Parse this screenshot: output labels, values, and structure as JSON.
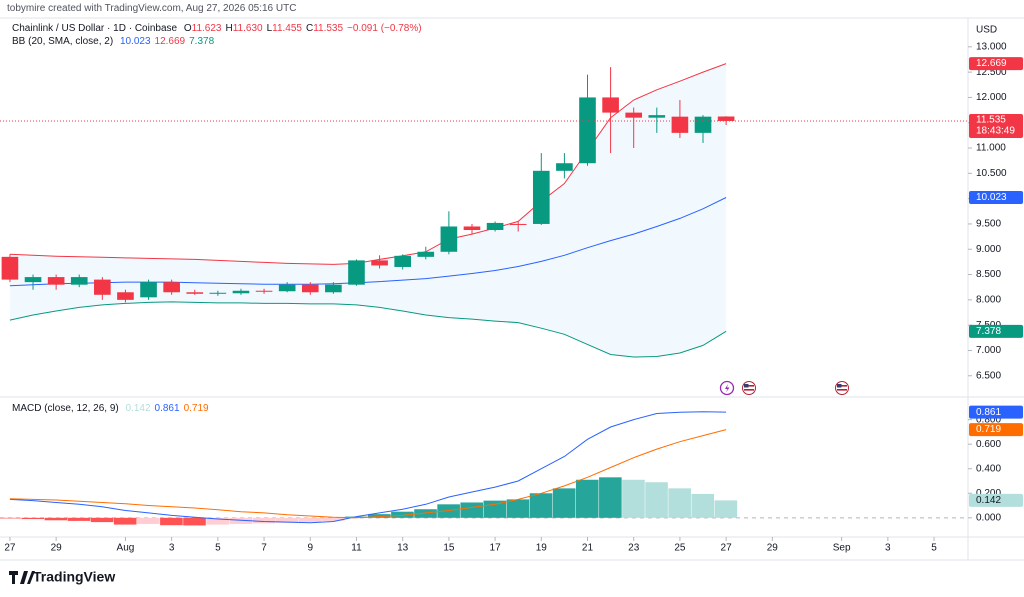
{
  "credit": "tobymire created with TradingView.com, Aug 27, 2026 05:16 UTC",
  "footer": "TradingView",
  "chart_data": [
    {
      "type": "candlestick",
      "title": "Chainlink / US Dollar · 1D · Coinbase",
      "ohlc": [
        {
          "key": "O",
          "text": "11.623"
        },
        {
          "key": "H",
          "text": "11.630"
        },
        {
          "key": "L",
          "text": "11.455"
        },
        {
          "key": "C",
          "text": "11.535"
        }
      ],
      "change": "−0.091 (−0.78%)",
      "currency": "USD",
      "countdown": "18:43:49",
      "indicator": "BB (20, SMA, close, 2)",
      "up_color": "#089981",
      "down_color": "#f23645",
      "x": [
        0,
        1,
        2,
        3,
        4,
        5,
        6,
        7,
        8,
        9,
        10,
        11,
        12,
        13,
        14,
        15,
        16,
        17,
        18,
        19,
        20,
        21,
        22,
        23,
        24,
        25,
        26,
        27,
        28,
        29,
        30,
        31
      ],
      "open": [
        8.85,
        8.35,
        8.45,
        8.3,
        8.4,
        8.15,
        8.05,
        8.35,
        8.15,
        8.12,
        8.13,
        8.18,
        8.17,
        8.3,
        8.15,
        8.3,
        8.78,
        8.65,
        8.85,
        8.95,
        9.45,
        9.38,
        9.5,
        9.5,
        10.55,
        10.7,
        12.0,
        11.7,
        11.6,
        11.62,
        11.3,
        11.623
      ],
      "high": [
        8.9,
        8.5,
        8.5,
        8.5,
        8.45,
        8.2,
        8.4,
        8.4,
        8.2,
        8.18,
        8.22,
        8.22,
        8.35,
        8.35,
        8.35,
        8.8,
        8.88,
        8.9,
        9.05,
        9.75,
        9.5,
        9.55,
        9.55,
        10.9,
        10.9,
        12.45,
        12.6,
        11.8,
        11.8,
        11.95,
        11.65,
        11.63
      ],
      "low": [
        8.35,
        8.2,
        8.2,
        8.25,
        8.0,
        7.95,
        8.0,
        8.1,
        8.1,
        8.08,
        8.1,
        8.12,
        8.15,
        8.1,
        8.12,
        8.28,
        8.62,
        8.6,
        8.8,
        8.9,
        9.3,
        9.35,
        9.35,
        9.48,
        10.4,
        10.65,
        10.9,
        11.0,
        11.3,
        11.2,
        11.1,
        11.455
      ],
      "close": [
        8.4,
        8.45,
        8.3,
        8.45,
        8.1,
        8.0,
        8.35,
        8.15,
        8.12,
        8.14,
        8.18,
        8.16,
        8.3,
        8.15,
        8.3,
        8.78,
        8.68,
        8.87,
        8.95,
        9.45,
        9.38,
        9.52,
        9.48,
        10.55,
        10.7,
        12.0,
        11.7,
        11.6,
        11.65,
        11.3,
        11.62,
        11.535
      ],
      "bands": [
        {
          "name": "middle",
          "color": "#2962ff",
          "values": [
            8.28,
            8.3,
            8.32,
            8.33,
            8.34,
            8.35,
            8.35,
            8.35,
            8.34,
            8.33,
            8.32,
            8.31,
            8.31,
            8.31,
            8.32,
            8.34,
            8.36,
            8.39,
            8.42,
            8.47,
            8.52,
            8.58,
            8.66,
            8.76,
            8.88,
            9.03,
            9.17,
            9.3,
            9.45,
            9.61,
            9.8,
            10.023
          ]
        },
        {
          "name": "upper",
          "color": "#f23645",
          "values": [
            8.9,
            8.88,
            8.86,
            8.85,
            8.84,
            8.83,
            8.82,
            8.81,
            8.8,
            8.78,
            8.76,
            8.74,
            8.72,
            8.71,
            8.7,
            8.72,
            8.8,
            8.87,
            8.95,
            9.2,
            9.3,
            9.42,
            9.55,
            9.95,
            10.3,
            10.95,
            11.6,
            11.95,
            12.15,
            12.32,
            12.5,
            12.669
          ]
        },
        {
          "name": "lower",
          "color": "#089981",
          "values": [
            7.6,
            7.7,
            7.78,
            7.85,
            7.9,
            7.93,
            7.95,
            7.96,
            7.95,
            7.94,
            7.94,
            7.93,
            7.93,
            7.92,
            7.92,
            7.9,
            7.85,
            7.78,
            7.7,
            7.65,
            7.62,
            7.58,
            7.55,
            7.44,
            7.32,
            7.12,
            6.92,
            6.87,
            6.88,
            6.95,
            7.1,
            7.378
          ]
        }
      ],
      "band_fill": "#2196f3",
      "ylim": [
        6.12,
        13.53
      ],
      "yticks": [
        {
          "value": 6.5,
          "label": "6.500"
        },
        {
          "value": 7,
          "label": "7.000"
        },
        {
          "value": 7.5,
          "label": "7.500"
        },
        {
          "value": 8,
          "label": "8.000"
        },
        {
          "value": 8.5,
          "label": "8.500"
        },
        {
          "value": 9,
          "label": "9.000"
        },
        {
          "value": 9.5,
          "label": "9.500"
        },
        {
          "value": 10,
          "label": "10.000"
        },
        {
          "value": 10.5,
          "label": "10.500"
        },
        {
          "value": 11,
          "label": "11.000"
        },
        {
          "value": 11.5,
          "label": "11.500"
        },
        {
          "value": 12,
          "label": "12.000"
        },
        {
          "value": 12.5,
          "label": "12.500"
        },
        {
          "value": 13,
          "label": "13.000"
        }
      ],
      "xlim": [
        -0.43,
        41.47
      ],
      "xticks": [
        {
          "value": 0,
          "label": "27"
        },
        {
          "value": 2,
          "label": "29"
        },
        {
          "value": 5,
          "label": "Aug"
        },
        {
          "value": 7,
          "label": "3"
        },
        {
          "value": 9,
          "label": "5"
        },
        {
          "value": 11,
          "label": "7"
        },
        {
          "value": 13,
          "label": "9"
        },
        {
          "value": 15,
          "label": "11"
        },
        {
          "value": 17,
          "label": "13"
        },
        {
          "value": 19,
          "label": "15"
        },
        {
          "value": 21,
          "label": "17"
        },
        {
          "value": 23,
          "label": "19"
        },
        {
          "value": 25,
          "label": "21"
        },
        {
          "value": 27,
          "label": "23"
        },
        {
          "value": 29,
          "label": "25"
        },
        {
          "value": 31,
          "label": "27"
        },
        {
          "value": 33,
          "label": "29"
        },
        {
          "value": 36,
          "label": "Sep"
        },
        {
          "value": 38,
          "label": "3"
        },
        {
          "value": 40,
          "label": "5"
        }
      ],
      "grid": false
    },
    {
      "type": "macd",
      "title": "MACD (close, 12, 26, 9)",
      "histogram": [
        -0.005,
        -0.01,
        -0.02,
        -0.025,
        -0.035,
        -0.055,
        -0.05,
        -0.06,
        -0.062,
        -0.055,
        -0.05,
        -0.045,
        -0.04,
        -0.035,
        -0.025,
        0.01,
        0.03,
        0.05,
        0.07,
        0.11,
        0.125,
        0.14,
        0.15,
        0.2,
        0.24,
        0.31,
        0.33,
        0.31,
        0.29,
        0.24,
        0.195,
        0.142
      ],
      "histogram_colors": {
        "rise_pos": "#26a69a",
        "fall_pos": "#b2dfdb",
        "rise_neg": "#ff5252",
        "fall_neg": "#ffcdd2"
      },
      "series": [
        {
          "name": "MACD",
          "color": "#2962ff",
          "values": [
            0.15,
            0.14,
            0.125,
            0.11,
            0.09,
            0.06,
            0.04,
            0.02,
            0.005,
            -0.01,
            -0.02,
            -0.03,
            -0.035,
            -0.04,
            -0.03,
            0.01,
            0.04,
            0.07,
            0.11,
            0.17,
            0.21,
            0.25,
            0.3,
            0.4,
            0.5,
            0.64,
            0.74,
            0.8,
            0.85,
            0.86,
            0.865,
            0.861
          ]
        },
        {
          "name": "Signal",
          "color": "#ff6d00",
          "values": [
            0.155,
            0.15,
            0.145,
            0.135,
            0.125,
            0.115,
            0.1,
            0.09,
            0.08,
            0.065,
            0.05,
            0.04,
            0.025,
            0.015,
            0.005,
            0.0,
            0.01,
            0.02,
            0.04,
            0.06,
            0.085,
            0.11,
            0.15,
            0.2,
            0.26,
            0.33,
            0.41,
            0.49,
            0.56,
            0.62,
            0.67,
            0.719
          ]
        }
      ],
      "ylim": [
        -0.14,
        0.96
      ],
      "yticks": [
        {
          "value": 0,
          "label": "0.000"
        },
        {
          "value": 0.2,
          "label": "0.200"
        },
        {
          "value": 0.4,
          "label": "0.400"
        },
        {
          "value": 0.6,
          "label": "0.600"
        },
        {
          "value": 0.8,
          "label": "0.800"
        }
      ]
    }
  ]
}
